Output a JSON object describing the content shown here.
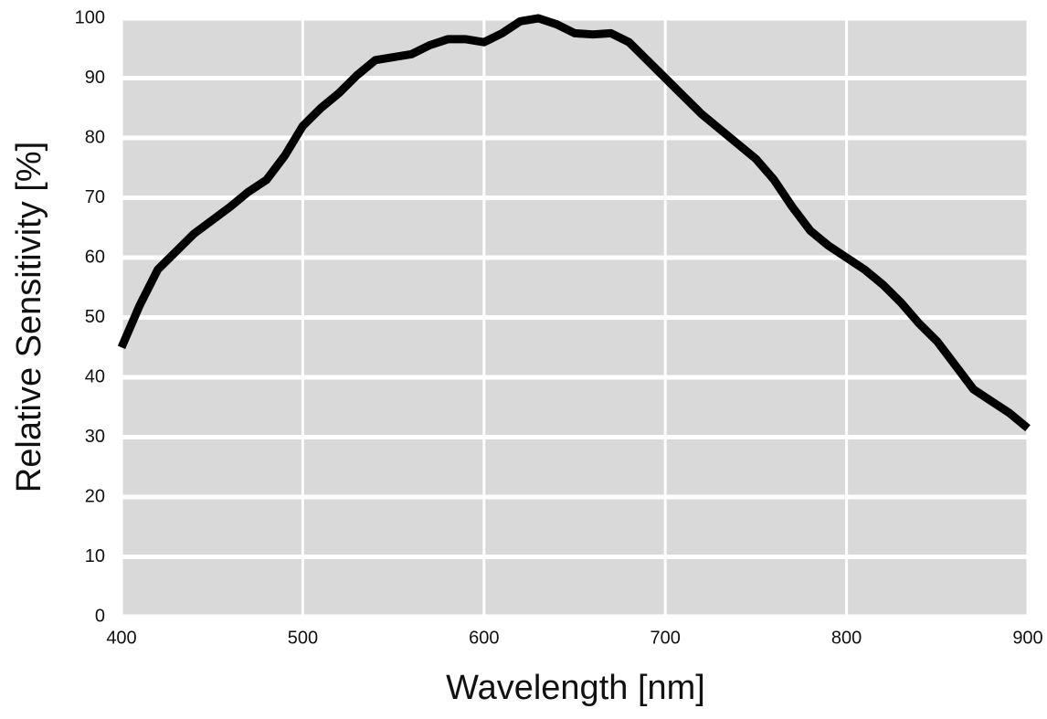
{
  "chart_data": {
    "type": "line",
    "x_label": "Wavelength [nm]",
    "y_label": "Relative Sensitivity [%]",
    "x": [
      400,
      410,
      420,
      440,
      460,
      470,
      480,
      490,
      500,
      510,
      520,
      530,
      540,
      550,
      560,
      570,
      580,
      590,
      600,
      610,
      620,
      630,
      640,
      650,
      660,
      670,
      680,
      690,
      700,
      710,
      720,
      730,
      740,
      750,
      760,
      770,
      780,
      790,
      800,
      810,
      820,
      830,
      840,
      850,
      860,
      870,
      880,
      890,
      900
    ],
    "series": [
      {
        "name": "Relative Sensitivity",
        "color": "#000000",
        "values": [
          45,
          52,
          58,
          64,
          68.5,
          71,
          73,
          77,
          82,
          85,
          87.5,
          90.5,
          93,
          93.5,
          94,
          95.5,
          96.5,
          96.5,
          96,
          97.5,
          99.5,
          100,
          99,
          97.5,
          97.3,
          97.5,
          96,
          93,
          90,
          87,
          84,
          81.5,
          79,
          76.5,
          73,
          68.5,
          64.5,
          62,
          60,
          58,
          55.5,
          52.5,
          49,
          46,
          42,
          38,
          36,
          34,
          31.5
        ]
      }
    ],
    "xlim": [
      400,
      900
    ],
    "ylim": [
      0,
      100
    ],
    "xticks": [
      400,
      500,
      600,
      700,
      800,
      900
    ],
    "yticks": [
      0,
      10,
      20,
      30,
      40,
      50,
      60,
      70,
      80,
      90,
      100
    ],
    "grid": true,
    "background": "#d9d9d9"
  }
}
